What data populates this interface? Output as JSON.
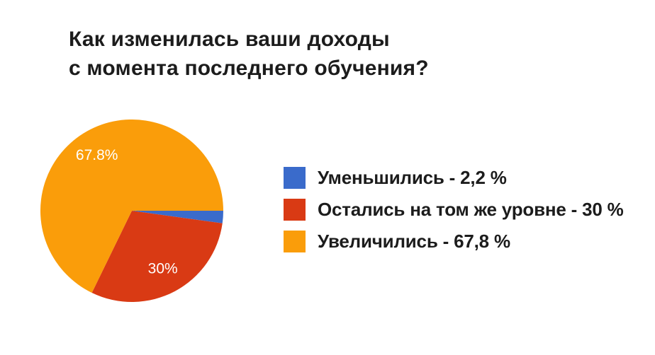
{
  "page": {
    "background": "#ffffff",
    "text_color": "#1c1c1c"
  },
  "title": {
    "line1": "Как изменилась ваши доходы",
    "line2": "с момента последнего обучения?"
  },
  "chart_data": {
    "type": "pie",
    "title": "Как изменилась ваши доходы с момента последнего обучения?",
    "start_angle_deg": 0,
    "direction": "clockwise",
    "legend_position": "right",
    "pie_label_color": "#ffffff",
    "slices": [
      {
        "name": "Уменьшились",
        "value": 2.2,
        "color": "#3a6bcb",
        "pie_label": ""
      },
      {
        "name": "Остались на том же уровне",
        "value": 30,
        "color": "#d93a14",
        "pie_label": "30%"
      },
      {
        "name": "Увеличились",
        "value": 67.8,
        "color": "#fa9d0a",
        "pie_label": "67.8%"
      }
    ]
  },
  "legend": {
    "items": [
      {
        "label": "Уменьшились - 2,2 %",
        "color": "#3a6bcb"
      },
      {
        "label": "Остались на том же уровне - 30 %",
        "color": "#d93a14"
      },
      {
        "label": "Увеличились - 67,8 %",
        "color": "#fa9d0a"
      }
    ]
  }
}
